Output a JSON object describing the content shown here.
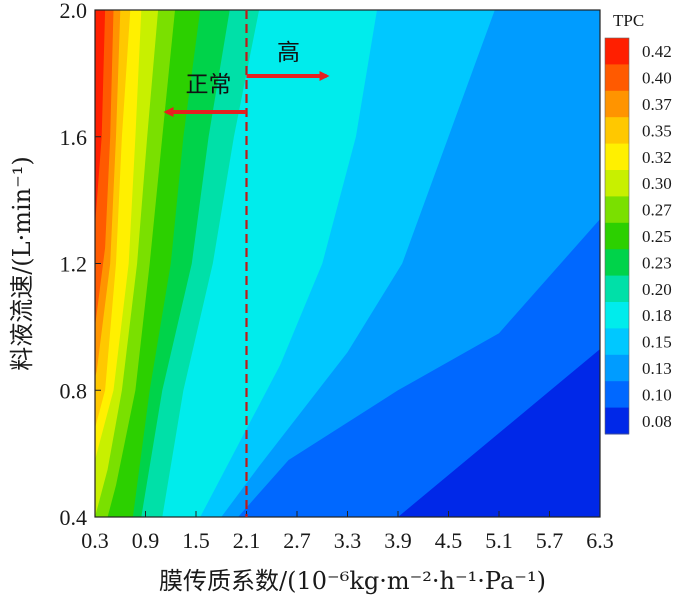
{
  "chart_data": {
    "type": "contour",
    "xlabel": "膜传质系数/(10⁻⁶kg·m⁻²·h⁻¹·Pa⁻¹)",
    "ylabel": "料液流速/(L·min⁻¹)",
    "x_ticks": [
      "0.3",
      "0.9",
      "1.5",
      "2.1",
      "2.7",
      "3.3",
      "3.9",
      "4.5",
      "5.1",
      "5.7",
      "6.3"
    ],
    "y_ticks": [
      "0.4",
      "0.8",
      "1.2",
      "1.6",
      "2.0"
    ],
    "xlim": [
      0.3,
      6.3
    ],
    "ylim": [
      0.4,
      2.0
    ],
    "colorbar": {
      "title": "TPC",
      "levels": [
        "0.42",
        "0.40",
        "0.37",
        "0.35",
        "0.32",
        "0.30",
        "0.27",
        "0.25",
        "0.23",
        "0.20",
        "0.18",
        "0.15",
        "0.13",
        "0.10",
        "0.08"
      ],
      "colors": [
        "#ff1f00",
        "#ff5a00",
        "#ff9400",
        "#ffc800",
        "#fff000",
        "#c8f000",
        "#7ae000",
        "#2cd000",
        "#00d34a",
        "#00e0a8",
        "#00ecec",
        "#00c8ff",
        "#009cff",
        "#0068ff",
        "#0028e8"
      ]
    },
    "annotation": {
      "divider_x": 2.1,
      "left_label": "正常",
      "right_label": "高"
    },
    "contour_boundaries": [
      {
        "level": "0.08",
        "points": [
          [
            6.3,
            0.93
          ],
          [
            3.9,
            0.4
          ]
        ]
      },
      {
        "level": "0.10",
        "points": [
          [
            6.3,
            1.34
          ],
          [
            5.1,
            0.98
          ],
          [
            3.9,
            0.8
          ],
          [
            2.6,
            0.58
          ],
          [
            2.0,
            0.4
          ]
        ]
      },
      {
        "level": "0.13",
        "points": [
          [
            5.05,
            2.0
          ],
          [
            4.5,
            1.6
          ],
          [
            3.95,
            1.2
          ],
          [
            3.3,
            0.92
          ],
          [
            2.25,
            0.56
          ],
          [
            1.8,
            0.4
          ]
        ]
      },
      {
        "level": "0.15",
        "points": [
          [
            3.65,
            2.0
          ],
          [
            3.4,
            1.6
          ],
          [
            3.0,
            1.2
          ],
          [
            2.5,
            0.88
          ],
          [
            1.55,
            0.4
          ]
        ]
      },
      {
        "level": "0.18",
        "points": [
          [
            2.25,
            2.0
          ],
          [
            1.95,
            1.6
          ],
          [
            1.7,
            1.2
          ],
          [
            1.35,
            0.8
          ],
          [
            1.1,
            0.4
          ]
        ]
      },
      {
        "level": "0.20",
        "points": [
          [
            1.9,
            2.0
          ],
          [
            1.65,
            1.6
          ],
          [
            1.45,
            1.2
          ],
          [
            1.1,
            0.8
          ],
          [
            0.85,
            0.4
          ]
        ]
      },
      {
        "level": "0.23",
        "points": [
          [
            1.55,
            2.0
          ],
          [
            1.35,
            1.6
          ],
          [
            1.2,
            1.2
          ],
          [
            0.95,
            0.8
          ],
          [
            0.75,
            0.4
          ]
        ]
      },
      {
        "level": "0.25",
        "points": [
          [
            1.25,
            2.0
          ],
          [
            1.1,
            1.6
          ],
          [
            0.95,
            1.2
          ],
          [
            0.78,
            0.8
          ],
          [
            0.55,
            0.5
          ],
          [
            0.45,
            0.4
          ]
        ]
      },
      {
        "level": "0.27",
        "points": [
          [
            1.05,
            2.0
          ],
          [
            0.92,
            1.6
          ],
          [
            0.8,
            1.2
          ],
          [
            0.62,
            0.8
          ],
          [
            0.45,
            0.55
          ],
          [
            0.3,
            0.4
          ]
        ]
      },
      {
        "level": "0.30",
        "points": [
          [
            0.85,
            2.0
          ],
          [
            0.78,
            1.6
          ],
          [
            0.7,
            1.2
          ],
          [
            0.52,
            0.8
          ],
          [
            0.3,
            0.58
          ]
        ]
      },
      {
        "level": "0.32",
        "points": [
          [
            0.72,
            2.0
          ],
          [
            0.62,
            1.6
          ],
          [
            0.55,
            1.2
          ],
          [
            0.42,
            0.8
          ],
          [
            0.3,
            0.68
          ]
        ]
      },
      {
        "level": "0.35",
        "points": [
          [
            0.6,
            2.0
          ],
          [
            0.55,
            1.6
          ],
          [
            0.48,
            1.2
          ],
          [
            0.32,
            0.86
          ],
          [
            0.3,
            0.84
          ]
        ]
      },
      {
        "level": "0.37",
        "points": [
          [
            0.52,
            2.0
          ],
          [
            0.48,
            1.6
          ],
          [
            0.42,
            1.25
          ],
          [
            0.3,
            1.0
          ]
        ]
      },
      {
        "level": "0.40",
        "points": [
          [
            0.42,
            2.0
          ],
          [
            0.38,
            1.6
          ],
          [
            0.3,
            1.32
          ]
        ]
      },
      {
        "level": "0.42",
        "points": [
          [
            0.36,
            2.0
          ],
          [
            0.33,
            1.7
          ],
          [
            0.3,
            1.58
          ]
        ]
      }
    ]
  }
}
